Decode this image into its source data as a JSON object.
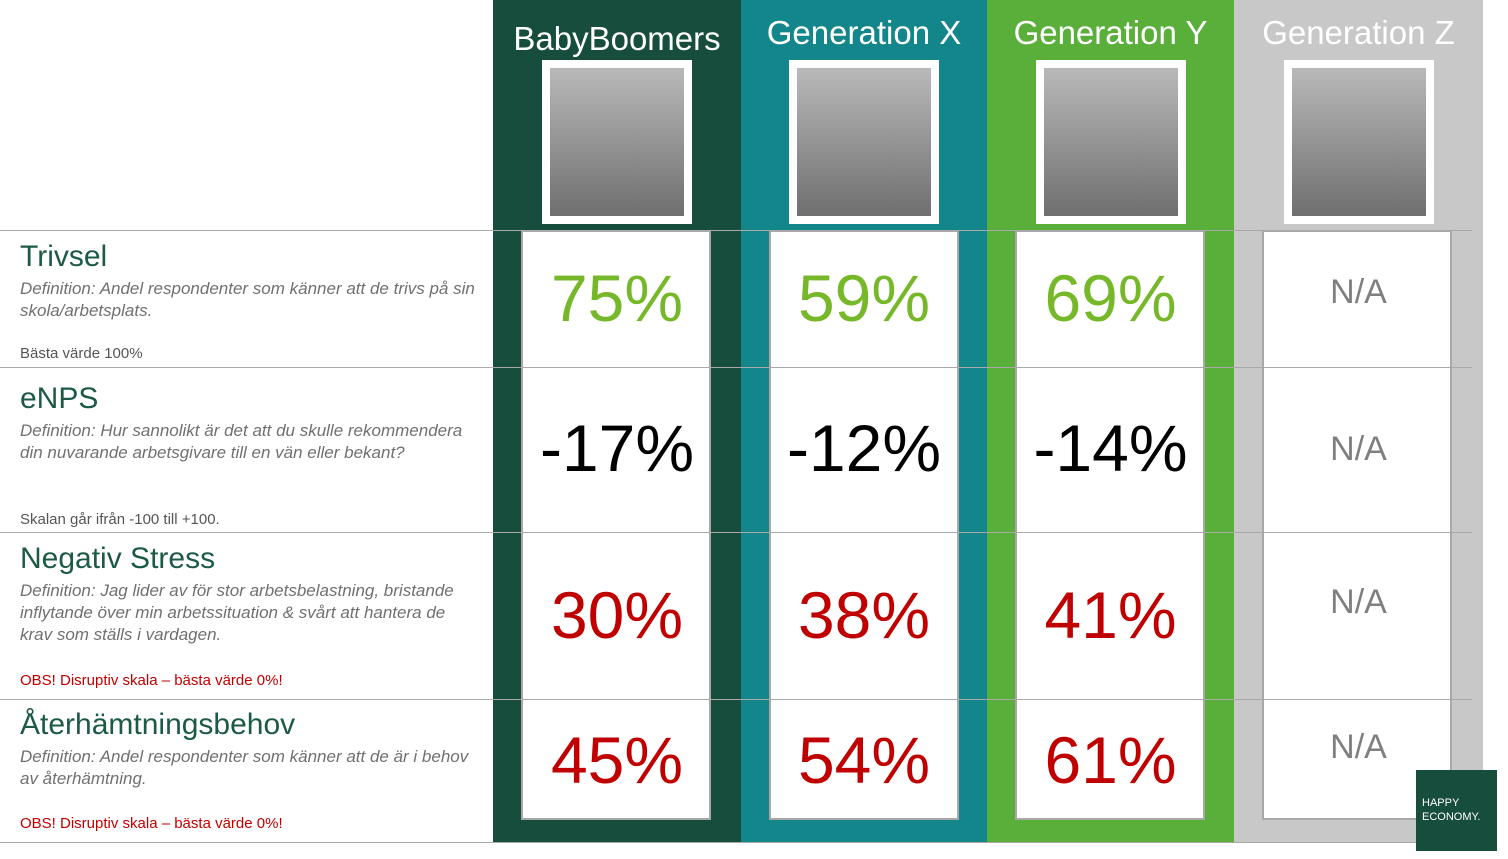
{
  "columns": [
    {
      "name": "BabyBoomers"
    },
    {
      "name": "Generation X"
    },
    {
      "name": "Generation Y"
    },
    {
      "name": "Generation Z"
    }
  ],
  "rows": [
    {
      "title": "Trivsel",
      "definition": "Definition: Andel respondenter som känner att de trivs på sin skola/arbetsplats.",
      "note": "Bästa värde 100%",
      "values": [
        "75%",
        "59%",
        "69%",
        "N/A"
      ]
    },
    {
      "title": "eNPS",
      "definition": "Definition: Hur sannolikt är det att du skulle rekommendera din nuvarande arbetsgivare till en vän eller bekant?",
      "note": "Skalan går ifrån -100 till +100.",
      "values": [
        "-17%",
        "-12%",
        "-14%",
        "N/A"
      ]
    },
    {
      "title": "Negativ Stress",
      "definition": "Definition: Jag lider av för stor arbetsbelastning, bristande inflytande över min arbetssituation & svårt att hantera de krav som ställs i vardagen.",
      "note": "OBS! Disruptiv skala – bästa värde 0%!",
      "values": [
        "30%",
        "38%",
        "41%",
        "N/A"
      ]
    },
    {
      "title": "Återhämtningsbehov",
      "definition": "Definition: Andel respondenter som känner att de är i behov av återhämtning.",
      "note": "OBS! Disruptiv skala – bästa värde 0%!",
      "values": [
        "45%",
        "54%",
        "61%",
        "N/A"
      ]
    }
  ],
  "logo": {
    "line1": "HAPPY",
    "line2": "ECONOMY."
  }
}
